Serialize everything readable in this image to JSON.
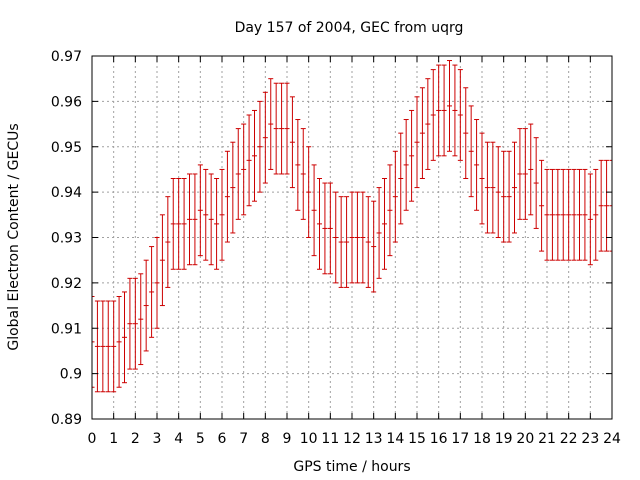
{
  "chart_data": {
    "type": "line",
    "title": "Day 157 of 2004, GEC from uqrg",
    "xlabel": "GPS time / hours",
    "ylabel": "Global Electron Content / GECUs",
    "xlim": [
      0,
      24
    ],
    "ylim": [
      0.89,
      0.97
    ],
    "xticks": [
      "0",
      "1",
      "2",
      "3",
      "4",
      "5",
      "6",
      "7",
      "8",
      "9",
      "10",
      "11",
      "12",
      "13",
      "14",
      "15",
      "16",
      "17",
      "18",
      "19",
      "20",
      "21",
      "22",
      "23",
      "24"
    ],
    "yticks": [
      "0.89",
      "0.9",
      "0.91",
      "0.92",
      "0.93",
      "0.94",
      "0.95",
      "0.96",
      "0.97"
    ],
    "grid": true,
    "error_color": "#cc0000",
    "series": [
      {
        "x": [
          0.0,
          0.25,
          0.5,
          0.75,
          1.0,
          1.25,
          1.5,
          1.75,
          2.0,
          2.25,
          2.5,
          2.75,
          3.0,
          3.25,
          3.5,
          3.75,
          4.0,
          4.25,
          4.5,
          4.75,
          5.0,
          5.25,
          5.5,
          5.75,
          6.0,
          6.25,
          6.5,
          6.75,
          7.0,
          7.25,
          7.5,
          7.75,
          8.0,
          8.25,
          8.5,
          8.75,
          9.0,
          9.25,
          9.5,
          9.75,
          10.0,
          10.25,
          10.5,
          10.75,
          11.0,
          11.25,
          11.5,
          11.75,
          12.0,
          12.25,
          12.5,
          12.75,
          13.0,
          13.25,
          13.5,
          13.75,
          14.0,
          14.25,
          14.5,
          14.75,
          15.0,
          15.25,
          15.5,
          15.75,
          16.0,
          16.25,
          16.5,
          16.75,
          17.0,
          17.25,
          17.5,
          17.75,
          18.0,
          18.25,
          18.5,
          18.75,
          19.0,
          19.25,
          19.5,
          19.75,
          20.0,
          20.25,
          20.5,
          20.75,
          21.0,
          21.25,
          21.5,
          21.75,
          22.0,
          22.25,
          22.5,
          22.75,
          23.0,
          23.25,
          23.5,
          23.75,
          24.0
        ],
        "y": [
          0.907,
          0.906,
          0.906,
          0.906,
          0.906,
          0.907,
          0.908,
          0.911,
          0.911,
          0.912,
          0.915,
          0.918,
          0.92,
          0.925,
          0.929,
          0.933,
          0.933,
          0.933,
          0.934,
          0.934,
          0.936,
          0.935,
          0.934,
          0.933,
          0.935,
          0.939,
          0.941,
          0.944,
          0.945,
          0.947,
          0.948,
          0.95,
          0.952,
          0.955,
          0.954,
          0.954,
          0.954,
          0.951,
          0.946,
          0.944,
          0.94,
          0.936,
          0.933,
          0.932,
          0.932,
          0.93,
          0.929,
          0.929,
          0.93,
          0.93,
          0.93,
          0.929,
          0.928,
          0.931,
          0.933,
          0.936,
          0.939,
          0.943,
          0.946,
          0.948,
          0.951,
          0.953,
          0.955,
          0.957,
          0.958,
          0.958,
          0.959,
          0.958,
          0.957,
          0.953,
          0.949,
          0.946,
          0.943,
          0.941,
          0.941,
          0.94,
          0.939,
          0.939,
          0.941,
          0.944,
          0.944,
          0.945,
          0.942,
          0.937,
          0.935,
          0.935,
          0.935,
          0.935,
          0.935,
          0.935,
          0.935,
          0.935,
          0.934,
          0.935,
          0.937,
          0.937,
          0.937
        ],
        "err": [
          0.01,
          0.01,
          0.01,
          0.01,
          0.01,
          0.01,
          0.01,
          0.01,
          0.01,
          0.01,
          0.01,
          0.01,
          0.01,
          0.01,
          0.01,
          0.01,
          0.01,
          0.01,
          0.01,
          0.01,
          0.01,
          0.01,
          0.01,
          0.01,
          0.01,
          0.01,
          0.01,
          0.01,
          0.01,
          0.01,
          0.01,
          0.01,
          0.01,
          0.01,
          0.01,
          0.01,
          0.01,
          0.01,
          0.01,
          0.01,
          0.01,
          0.01,
          0.01,
          0.01,
          0.01,
          0.01,
          0.01,
          0.01,
          0.01,
          0.01,
          0.01,
          0.01,
          0.01,
          0.01,
          0.01,
          0.01,
          0.01,
          0.01,
          0.01,
          0.01,
          0.01,
          0.01,
          0.01,
          0.01,
          0.01,
          0.01,
          0.01,
          0.01,
          0.01,
          0.01,
          0.01,
          0.01,
          0.01,
          0.01,
          0.01,
          0.01,
          0.01,
          0.01,
          0.01,
          0.01,
          0.01,
          0.01,
          0.01,
          0.01,
          0.01,
          0.01,
          0.01,
          0.01,
          0.01,
          0.01,
          0.01,
          0.01,
          0.01,
          0.01,
          0.01,
          0.01,
          0.01
        ]
      }
    ]
  }
}
